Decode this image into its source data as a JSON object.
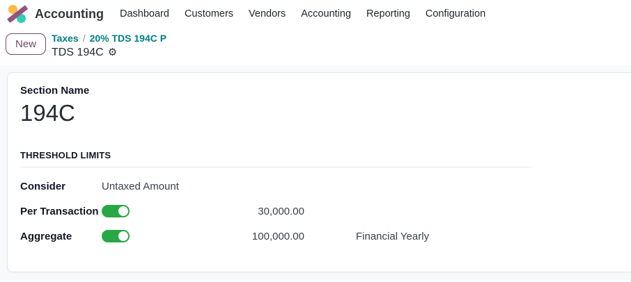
{
  "colors": {
    "brand_teal_link": "#017e84",
    "button_purple": "#714B67",
    "toggle_on_green": "#28a745",
    "logo_yellow": "#fbb945",
    "logo_teal": "#2fd0b2",
    "logo_plum": "#95537e",
    "content_background": "#f8f9fa"
  },
  "nav": {
    "brand": "Accounting",
    "items": [
      {
        "label": "Dashboard"
      },
      {
        "label": "Customers"
      },
      {
        "label": "Vendors"
      },
      {
        "label": "Accounting"
      },
      {
        "label": "Reporting"
      },
      {
        "label": "Configuration"
      }
    ]
  },
  "breadcrumb": {
    "new_label": "New",
    "links": [
      "Taxes",
      "20% TDS 194C P"
    ],
    "separator": "/",
    "current": "TDS 194C",
    "gear_icon": "⚙"
  },
  "form": {
    "section_name_label": "Section Name",
    "section_name_value": "194C",
    "threshold_title": "THRESHOLD LIMITS",
    "rows": [
      {
        "label": "Consider",
        "value": "Untaxed Amount"
      },
      {
        "label": "Per Transaction",
        "toggle": "on",
        "amount": "30,000.00"
      },
      {
        "label": "Aggregate",
        "toggle": "on",
        "amount": "100,000.00",
        "period": "Financial Yearly"
      }
    ]
  }
}
